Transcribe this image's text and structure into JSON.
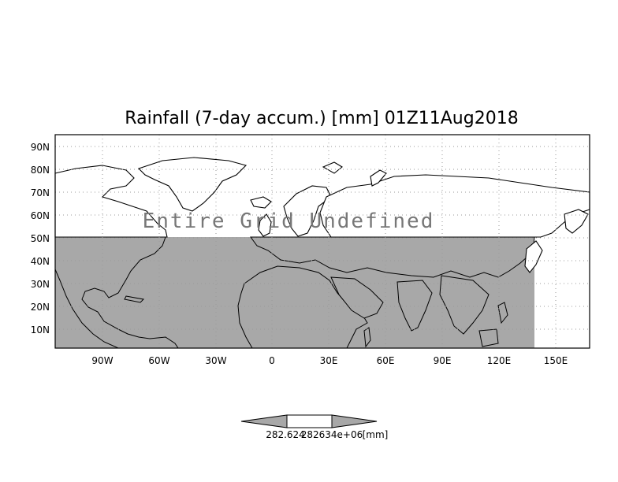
{
  "title": "Rainfall (7-day accum.) [mm] 01Z11Aug2018",
  "overlay_message": "Entire Grid Undefined",
  "lat_labels": [
    "10N",
    "20N",
    "30N",
    "40N",
    "50N",
    "60N",
    "70N",
    "80N",
    "90N"
  ],
  "lon_labels": [
    "90W",
    "60W",
    "30W",
    "0",
    "30E",
    "60E",
    "90E",
    "120E",
    "150E"
  ],
  "colorbar": {
    "min_label": "282.624",
    "max_label": "282634e+06",
    "units_label": "[mm]"
  },
  "colors": {
    "land_fill": "#a8a8a8",
    "masked_region": "#a8a8a8",
    "coastline": "#000000",
    "grid": "#9a9a9a",
    "overlay_text": "#777777"
  }
}
